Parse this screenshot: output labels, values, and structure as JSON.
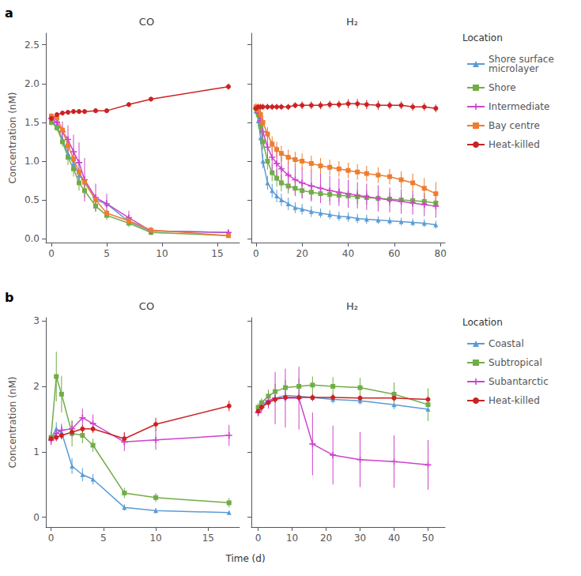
{
  "chart_data": [
    {
      "type": "line",
      "title": "CO",
      "ylabel": "Concentration (nM)",
      "annotations": [
        "a"
      ],
      "xlim": [
        -0.5,
        17
      ],
      "xticks": [
        0,
        5,
        10,
        15
      ],
      "ylim": [
        -0.05,
        2.65
      ],
      "yticks": [
        {
          "value": 0,
          "label": "0.0"
        },
        0.5,
        {
          "value": 1.0,
          "label": "1.0"
        },
        1.5,
        {
          "value": 2.0,
          "label": "2.0"
        },
        2.5
      ],
      "grid": false,
      "series": [
        {
          "name": "Shore surface\nmicrolayer",
          "color": "#5B9BD5",
          "marker": "triangle",
          "x": [
            0,
            0.5,
            1,
            1.5,
            2,
            2.5,
            3,
            4,
            5,
            7,
            9,
            16
          ],
          "values": [
            1.52,
            1.45,
            1.28,
            1.1,
            0.97,
            0.82,
            0.73,
            0.5,
            0.45,
            0.22,
            0.1,
            0.08
          ],
          "yerr": [
            0.04,
            0.04,
            0.05,
            0.07,
            0.07,
            0.06,
            0.06,
            0.05,
            0.05,
            0.04,
            0.03,
            0.02
          ]
        },
        {
          "name": "Shore",
          "color": "#70AD47",
          "marker": "square",
          "x": [
            0,
            0.5,
            1,
            1.5,
            2,
            2.5,
            3,
            4,
            5,
            7,
            9,
            16
          ],
          "values": [
            1.5,
            1.43,
            1.25,
            1.05,
            0.9,
            0.72,
            0.62,
            0.42,
            0.3,
            0.2,
            0.08,
            0.04
          ],
          "yerr": [
            0.04,
            0.04,
            0.06,
            0.1,
            0.1,
            0.1,
            0.09,
            0.07,
            0.06,
            0.05,
            0.03,
            0.02
          ]
        },
        {
          "name": "Intermediate",
          "color": "#CC44CC",
          "marker": "plus",
          "x": [
            0,
            0.5,
            1,
            1.5,
            2,
            2.5,
            3,
            4,
            5,
            7,
            9,
            16
          ],
          "values": [
            1.55,
            1.5,
            1.38,
            1.28,
            1.12,
            0.98,
            0.76,
            0.53,
            0.45,
            0.27,
            0.1,
            0.08
          ],
          "yerr": [
            0.05,
            0.07,
            0.13,
            0.18,
            0.22,
            0.26,
            0.28,
            0.18,
            0.13,
            0.09,
            0.05,
            0.03
          ]
        },
        {
          "name": "Bay centre",
          "color": "#ED7D31",
          "marker": "square",
          "x": [
            0,
            0.5,
            1,
            1.5,
            2,
            2.5,
            3,
            4,
            5,
            7,
            9,
            16
          ],
          "values": [
            1.58,
            1.56,
            1.4,
            1.2,
            1.03,
            0.86,
            0.73,
            0.5,
            0.33,
            0.23,
            0.11,
            0.04
          ],
          "yerr": [
            0.04,
            0.03,
            0.05,
            0.07,
            0.07,
            0.06,
            0.06,
            0.05,
            0.04,
            0.04,
            0.03,
            0.02
          ]
        },
        {
          "name": "Heat-killed",
          "color": "#CC2222",
          "marker": "circle",
          "x": [
            0,
            0.5,
            1,
            1.5,
            2,
            2.5,
            3,
            4,
            5,
            7,
            9,
            16
          ],
          "values": [
            1.55,
            1.6,
            1.62,
            1.63,
            1.64,
            1.64,
            1.64,
            1.65,
            1.65,
            1.73,
            1.8,
            1.96
          ],
          "yerr": [
            0.03,
            0.03,
            0.03,
            0.03,
            0.03,
            0.03,
            0.03,
            0.03,
            0.03,
            0.03,
            0.03,
            0.04
          ]
        }
      ]
    },
    {
      "type": "line",
      "title": "H₂",
      "tick_labels": "x",
      "legend": "right",
      "legend_title": "Location",
      "xlim": [
        -2,
        82
      ],
      "xticks": [
        0,
        20,
        40,
        60,
        80
      ],
      "ylim": [
        -0.05,
        2.65
      ],
      "yticks": [
        0,
        0.5,
        1,
        1.5,
        2,
        2.5
      ],
      "grid": false,
      "series": [
        {
          "name": "Shore surface\nmicrolayer",
          "color": "#5B9BD5",
          "marker": "triangle",
          "x": [
            0,
            1,
            2,
            3,
            5,
            7,
            9,
            11,
            14,
            17,
            20,
            24,
            28,
            32,
            36,
            40,
            44,
            48,
            53,
            58,
            63,
            68,
            73,
            78
          ],
          "values": [
            1.65,
            1.52,
            1.3,
            1.0,
            0.72,
            0.62,
            0.55,
            0.5,
            0.45,
            0.4,
            0.38,
            0.35,
            0.33,
            0.31,
            0.29,
            0.28,
            0.26,
            0.25,
            0.24,
            0.23,
            0.22,
            0.21,
            0.2,
            0.18
          ],
          "yerr": [
            0.05,
            0.07,
            0.08,
            0.09,
            0.09,
            0.09,
            0.08,
            0.08,
            0.08,
            0.07,
            0.07,
            0.07,
            0.06,
            0.06,
            0.06,
            0.06,
            0.06,
            0.06,
            0.05,
            0.05,
            0.05,
            0.05,
            0.05,
            0.05
          ]
        },
        {
          "name": "Shore",
          "color": "#70AD47",
          "marker": "square",
          "x": [
            0,
            1,
            2,
            3,
            5,
            7,
            9,
            11,
            14,
            17,
            20,
            24,
            28,
            32,
            36,
            40,
            44,
            48,
            53,
            58,
            63,
            68,
            73,
            78
          ],
          "values": [
            1.68,
            1.6,
            1.45,
            1.25,
            1.0,
            0.85,
            0.78,
            0.72,
            0.68,
            0.65,
            0.62,
            0.6,
            0.58,
            0.57,
            0.56,
            0.55,
            0.54,
            0.53,
            0.52,
            0.51,
            0.5,
            0.49,
            0.48,
            0.46
          ],
          "yerr": [
            0.05,
            0.07,
            0.09,
            0.1,
            0.11,
            0.11,
            0.11,
            0.11,
            0.1,
            0.1,
            0.1,
            0.1,
            0.1,
            0.09,
            0.09,
            0.09,
            0.09,
            0.09,
            0.08,
            0.08,
            0.08,
            0.08,
            0.08,
            0.08
          ]
        },
        {
          "name": "Intermediate",
          "color": "#CC44CC",
          "marker": "plus",
          "x": [
            0,
            1,
            2,
            3,
            5,
            7,
            9,
            11,
            14,
            17,
            20,
            24,
            28,
            32,
            36,
            40,
            44,
            48,
            53,
            58,
            63,
            68,
            73,
            78
          ],
          "values": [
            1.68,
            1.62,
            1.52,
            1.38,
            1.18,
            1.05,
            0.97,
            0.9,
            0.82,
            0.76,
            0.72,
            0.68,
            0.65,
            0.62,
            0.6,
            0.58,
            0.56,
            0.54,
            0.52,
            0.5,
            0.48,
            0.46,
            0.44,
            0.42
          ],
          "yerr": [
            0.05,
            0.08,
            0.12,
            0.17,
            0.2,
            0.22,
            0.22,
            0.22,
            0.2,
            0.2,
            0.2,
            0.2,
            0.19,
            0.19,
            0.18,
            0.18,
            0.17,
            0.17,
            0.17,
            0.16,
            0.16,
            0.15,
            0.15,
            0.15
          ]
        },
        {
          "name": "Bay centre",
          "color": "#ED7D31",
          "marker": "square",
          "x": [
            0,
            1,
            2,
            3,
            5,
            7,
            9,
            11,
            14,
            17,
            20,
            24,
            28,
            32,
            36,
            40,
            44,
            48,
            53,
            58,
            63,
            68,
            73,
            78
          ],
          "values": [
            1.7,
            1.66,
            1.6,
            1.5,
            1.35,
            1.22,
            1.15,
            1.1,
            1.05,
            1.02,
            1.0,
            0.97,
            0.94,
            0.92,
            0.9,
            0.88,
            0.86,
            0.84,
            0.82,
            0.8,
            0.76,
            0.72,
            0.65,
            0.58
          ],
          "yerr": [
            0.05,
            0.06,
            0.07,
            0.08,
            0.09,
            0.1,
            0.1,
            0.1,
            0.1,
            0.1,
            0.1,
            0.1,
            0.1,
            0.1,
            0.1,
            0.1,
            0.1,
            0.1,
            0.1,
            0.1,
            0.11,
            0.12,
            0.13,
            0.15
          ]
        },
        {
          "name": "Heat-killed",
          "color": "#CC2222",
          "marker": "circle",
          "x": [
            0,
            1,
            2,
            3,
            5,
            7,
            9,
            11,
            14,
            17,
            20,
            24,
            28,
            32,
            36,
            40,
            44,
            48,
            53,
            58,
            63,
            68,
            73,
            78
          ],
          "values": [
            1.68,
            1.7,
            1.7,
            1.7,
            1.7,
            1.7,
            1.7,
            1.7,
            1.7,
            1.72,
            1.72,
            1.72,
            1.72,
            1.73,
            1.73,
            1.74,
            1.74,
            1.73,
            1.72,
            1.72,
            1.72,
            1.7,
            1.7,
            1.68
          ],
          "yerr": [
            0.04,
            0.04,
            0.04,
            0.04,
            0.04,
            0.04,
            0.04,
            0.04,
            0.04,
            0.04,
            0.05,
            0.05,
            0.05,
            0.05,
            0.05,
            0.06,
            0.06,
            0.06,
            0.06,
            0.05,
            0.05,
            0.05,
            0.05,
            0.05
          ]
        }
      ]
    },
    {
      "type": "line",
      "title": "CO",
      "ylabel": "Concentration (nM)",
      "xlabel": "Time (d)",
      "annotations": [
        "b"
      ],
      "xlim": [
        -0.5,
        18
      ],
      "xticks": [
        0,
        5,
        10,
        15
      ],
      "ylim": [
        -0.15,
        3.05
      ],
      "yticks": [
        0,
        1,
        2,
        3
      ],
      "grid": false,
      "series": [
        {
          "name": "Coastal",
          "color": "#5B9BD5",
          "marker": "triangle",
          "x": [
            0,
            0.5,
            1,
            2,
            3,
            4,
            7,
            10,
            17
          ],
          "values": [
            1.2,
            1.35,
            1.3,
            0.78,
            0.65,
            0.58,
            0.15,
            0.1,
            0.07
          ],
          "yerr": [
            0.08,
            0.1,
            0.1,
            0.12,
            0.1,
            0.08,
            0.05,
            0.04,
            0.03
          ]
        },
        {
          "name": "Subtropical",
          "color": "#70AD47",
          "marker": "square",
          "x": [
            0,
            0.5,
            1,
            2,
            3,
            4,
            7,
            10,
            17
          ],
          "values": [
            1.22,
            2.15,
            1.88,
            1.28,
            1.25,
            1.1,
            0.37,
            0.3,
            0.22
          ],
          "yerr": [
            0.08,
            0.38,
            0.28,
            0.2,
            0.12,
            0.1,
            0.08,
            0.07,
            0.07
          ]
        },
        {
          "name": "Subantarctic",
          "color": "#CC44CC",
          "marker": "plus",
          "x": [
            0,
            0.5,
            1,
            2,
            3,
            4,
            7,
            10,
            17
          ],
          "values": [
            1.18,
            1.28,
            1.33,
            1.35,
            1.52,
            1.43,
            1.15,
            1.18,
            1.25
          ],
          "yerr": [
            0.08,
            0.1,
            0.1,
            0.12,
            0.14,
            0.14,
            0.14,
            0.15,
            0.16
          ]
        },
        {
          "name": "Heat-killed",
          "color": "#CC2222",
          "marker": "circle",
          "x": [
            0,
            0.5,
            1,
            2,
            3,
            4,
            7,
            10,
            17
          ],
          "values": [
            1.2,
            1.22,
            1.25,
            1.3,
            1.35,
            1.35,
            1.2,
            1.42,
            1.7
          ],
          "yerr": [
            0.06,
            0.06,
            0.06,
            0.06,
            0.06,
            0.06,
            0.1,
            0.1,
            0.08
          ]
        }
      ]
    },
    {
      "type": "line",
      "title": "H₂",
      "tick_labels": "x",
      "legend": "right",
      "legend_title": "Location",
      "xlim": [
        -2,
        55
      ],
      "xticks": [
        0,
        10,
        20,
        30,
        40,
        50
      ],
      "ylim": [
        -0.15,
        3.05
      ],
      "yticks": [
        0,
        1,
        2,
        3
      ],
      "grid": false,
      "series": [
        {
          "name": "Coastal",
          "color": "#5B9BD5",
          "marker": "triangle",
          "x": [
            0,
            1,
            3,
            5,
            8,
            12,
            16,
            22,
            30,
            40,
            50
          ],
          "values": [
            1.65,
            1.72,
            1.78,
            1.82,
            1.86,
            1.85,
            1.83,
            1.8,
            1.78,
            1.72,
            1.65
          ],
          "yerr": [
            0.06,
            0.06,
            0.06,
            0.06,
            0.06,
            0.06,
            0.06,
            0.06,
            0.06,
            0.07,
            0.09
          ]
        },
        {
          "name": "Subtropical",
          "color": "#70AD47",
          "marker": "square",
          "x": [
            0,
            1,
            3,
            5,
            8,
            12,
            16,
            22,
            30,
            40,
            50
          ],
          "values": [
            1.68,
            1.75,
            1.85,
            1.92,
            1.98,
            2.0,
            2.02,
            2.0,
            1.98,
            1.88,
            1.72
          ],
          "yerr": [
            0.06,
            0.07,
            0.1,
            0.12,
            0.12,
            0.12,
            0.13,
            0.14,
            0.15,
            0.18,
            0.25
          ]
        },
        {
          "name": "Subantarctic",
          "color": "#CC44CC",
          "marker": "plus",
          "x": [
            0,
            1,
            3,
            5,
            8,
            12,
            16,
            22,
            30,
            40,
            50
          ],
          "values": [
            1.6,
            1.68,
            1.78,
            1.82,
            1.82,
            1.82,
            1.12,
            0.95,
            0.88,
            0.85,
            0.8
          ],
          "yerr": [
            0.06,
            0.08,
            0.12,
            0.4,
            0.45,
            0.48,
            0.48,
            0.45,
            0.42,
            0.4,
            0.38
          ]
        },
        {
          "name": "Heat-killed",
          "color": "#CC2222",
          "marker": "circle",
          "x": [
            0,
            1,
            3,
            5,
            8,
            12,
            16,
            22,
            30,
            40,
            50
          ],
          "values": [
            1.62,
            1.68,
            1.75,
            1.8,
            1.83,
            1.83,
            1.83,
            1.83,
            1.82,
            1.82,
            1.8
          ],
          "yerr": [
            0.05,
            0.05,
            0.05,
            0.05,
            0.05,
            0.05,
            0.05,
            0.05,
            0.05,
            0.05,
            0.05
          ]
        }
      ]
    }
  ]
}
